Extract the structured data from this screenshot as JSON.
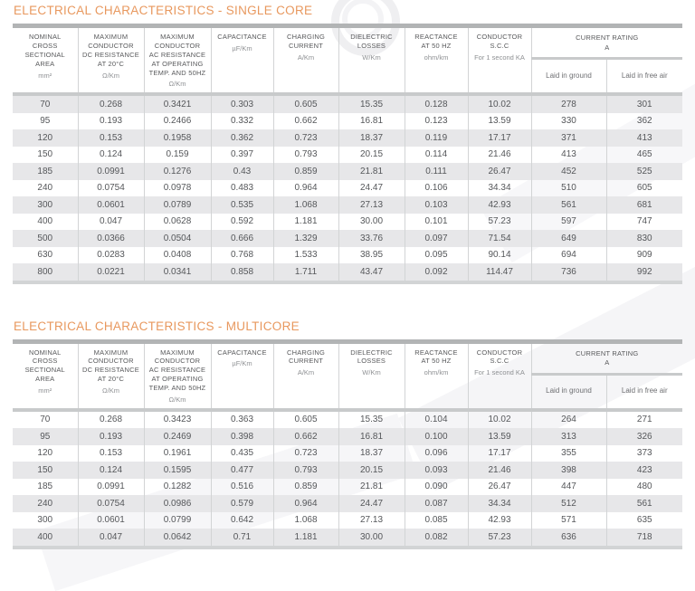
{
  "colors": {
    "accent_orange": "#E8985E",
    "header_text": "#58595B",
    "unit_text": "#8E9093",
    "data_text": "#55575A",
    "row_stripe": "#E7E7E9",
    "bar_top": "#B2B4B5",
    "bar_header_bottom": "#C8CACB",
    "bar_table_bottom": "#D2D4D5"
  },
  "columns": [
    {
      "label": "NOMINAL\nCROSS\nSECTIONAL\nAREA",
      "unit": "mm²"
    },
    {
      "label": "MAXIMUM\nCONDUCTOR\nDC RESISTANCE\nAT 20°C",
      "unit": "Ω/Km"
    },
    {
      "label": "MAXIMUM\nCONDUCTOR\nAC RESISTANCE\nAT OPERATING\nTEMP. AND 50HZ",
      "unit": "Ω/Km"
    },
    {
      "label": "CAPACITANCE",
      "unit": "µF/Km"
    },
    {
      "label": "CHARGING\nCURRENT",
      "unit": "A/Km"
    },
    {
      "label": "DIELECTRIC\nLOSSES",
      "unit": "W/Km"
    },
    {
      "label": "REACTANCE\nAT 50 HZ",
      "unit": "ohm/km"
    },
    {
      "label": "CONDUCTOR\nS.C.C",
      "unit": "For 1 second KA"
    },
    {
      "label": "CURRENT RATING",
      "unit": "A",
      "subcolumns": [
        "Laid in ground",
        "Laid in free air"
      ]
    }
  ],
  "tables": [
    {
      "title": "ELECTRICAL CHARACTERISTICS - SINGLE CORE",
      "rows": [
        [
          "70",
          "0.268",
          "0.3421",
          "0.303",
          "0.605",
          "15.35",
          "0.128",
          "10.02",
          "278",
          "301"
        ],
        [
          "95",
          "0.193",
          "0.2466",
          "0.332",
          "0.662",
          "16.81",
          "0.123",
          "13.59",
          "330",
          "362"
        ],
        [
          "120",
          "0.153",
          "0.1958",
          "0.362",
          "0.723",
          "18.37",
          "0.119",
          "17.17",
          "371",
          "413"
        ],
        [
          "150",
          "0.124",
          "0.159",
          "0.397",
          "0.793",
          "20.15",
          "0.114",
          "21.46",
          "413",
          "465"
        ],
        [
          "185",
          "0.0991",
          "0.1276",
          "0.43",
          "0.859",
          "21.81",
          "0.111",
          "26.47",
          "452",
          "525"
        ],
        [
          "240",
          "0.0754",
          "0.0978",
          "0.483",
          "0.964",
          "24.47",
          "0.106",
          "34.34",
          "510",
          "605"
        ],
        [
          "300",
          "0.0601",
          "0.0789",
          "0.535",
          "1.068",
          "27.13",
          "0.103",
          "42.93",
          "561",
          "681"
        ],
        [
          "400",
          "0.047",
          "0.0628",
          "0.592",
          "1.181",
          "30.00",
          "0.101",
          "57.23",
          "597",
          "747"
        ],
        [
          "500",
          "0.0366",
          "0.0504",
          "0.666",
          "1.329",
          "33.76",
          "0.097",
          "71.54",
          "649",
          "830"
        ],
        [
          "630",
          "0.0283",
          "0.0408",
          "0.768",
          "1.533",
          "38.95",
          "0.095",
          "90.14",
          "694",
          "909"
        ],
        [
          "800",
          "0.0221",
          "0.0341",
          "0.858",
          "1.711",
          "43.47",
          "0.092",
          "114.47",
          "736",
          "992"
        ]
      ]
    },
    {
      "title": "ELECTRICAL CHARACTERISTICS - MULTICORE",
      "rows": [
        [
          "70",
          "0.268",
          "0.3423",
          "0.363",
          "0.605",
          "15.35",
          "0.104",
          "10.02",
          "264",
          "271"
        ],
        [
          "95",
          "0.193",
          "0.2469",
          "0.398",
          "0.662",
          "16.81",
          "0.100",
          "13.59",
          "313",
          "326"
        ],
        [
          "120",
          "0.153",
          "0.1961",
          "0.435",
          "0.723",
          "18.37",
          "0.096",
          "17.17",
          "355",
          "373"
        ],
        [
          "150",
          "0.124",
          "0.1595",
          "0.477",
          "0.793",
          "20.15",
          "0.093",
          "21.46",
          "398",
          "423"
        ],
        [
          "185",
          "0.0991",
          "0.1282",
          "0.516",
          "0.859",
          "21.81",
          "0.090",
          "26.47",
          "447",
          "480"
        ],
        [
          "240",
          "0.0754",
          "0.0986",
          "0.579",
          "0.964",
          "24.47",
          "0.087",
          "34.34",
          "512",
          "561"
        ],
        [
          "300",
          "0.0601",
          "0.0799",
          "0.642",
          "1.068",
          "27.13",
          "0.085",
          "42.93",
          "571",
          "635"
        ],
        [
          "400",
          "0.047",
          "0.0642",
          "0.71",
          "1.181",
          "30.00",
          "0.082",
          "57.23",
          "636",
          "718"
        ]
      ]
    }
  ]
}
